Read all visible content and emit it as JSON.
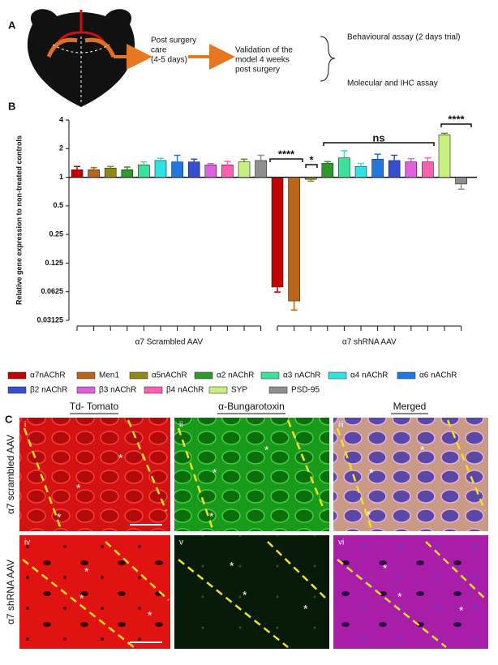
{
  "panel_labels": {
    "a": "A",
    "b": "B",
    "c": "C"
  },
  "panel_a": {
    "steps": [
      [
        "Post surgery",
        "care",
        " (4-5 days)"
      ],
      [
        "Validation of the",
        "model 4 weeks",
        "post surgery"
      ]
    ],
    "outcomes": [
      "Behavioural assay (2 days trial)",
      "Molecular and IHC assay"
    ]
  },
  "chart_data": {
    "type": "bar",
    "y_label": "Relative gene expression to non-treated controls",
    "categories": [
      "α7 Scrambled AAV",
      "α7 shRNA AAV"
    ],
    "yscale": "log2",
    "baseline": 1,
    "ylim": [
      0.03125,
      4
    ],
    "yticks": [
      0.03125,
      0.0625,
      0.125,
      0.25,
      0.5,
      1,
      2,
      4
    ],
    "series": [
      {
        "name": "α7nAChR",
        "color": "#c40000",
        "values": [
          1.2,
          0.07
        ],
        "errors": [
          0.1,
          0.008
        ]
      },
      {
        "name": "Men1",
        "color": "#b8661c",
        "values": [
          1.2,
          0.05
        ],
        "errors": [
          0.06,
          0.01
        ]
      },
      {
        "name": "α5nAChR",
        "color": "#8d8a18",
        "values": [
          1.25,
          0.95
        ],
        "errors": [
          0.05,
          0.04
        ]
      },
      {
        "name": "α2 nAChR",
        "color": "#2e9a2e",
        "values": [
          1.2,
          1.4
        ],
        "errors": [
          0.08,
          0.06
        ]
      },
      {
        "name": "α3 nAChR",
        "color": "#3fe09c",
        "values": [
          1.35,
          1.6
        ],
        "errors": [
          0.1,
          0.3
        ]
      },
      {
        "name": "α4 nAChR",
        "color": "#2fe3e3",
        "values": [
          1.5,
          1.3
        ],
        "errors": [
          0.08,
          0.1
        ]
      },
      {
        "name": "α6 nAChR",
        "color": "#1f78e0",
        "values": [
          1.45,
          1.55
        ],
        "errors": [
          0.25,
          0.2
        ]
      },
      {
        "name": "β2 nAChR",
        "color": "#3450d0",
        "values": [
          1.45,
          1.5
        ],
        "errors": [
          0.1,
          0.2
        ]
      },
      {
        "name": "β3 nAChR",
        "color": "#e060e0",
        "values": [
          1.35,
          1.45
        ],
        "errors": [
          0.04,
          0.12
        ]
      },
      {
        "name": "β4 nAChR",
        "color": "#ff5fb0",
        "values": [
          1.35,
          1.45
        ],
        "errors": [
          0.12,
          0.15
        ]
      },
      {
        "name": "SYP",
        "color": "#c8f080",
        "values": [
          1.45,
          2.8
        ],
        "errors": [
          0.1,
          0.1
        ]
      },
      {
        "name": "PSD-95",
        "color": "#8f8f8f",
        "values": [
          1.5,
          0.85
        ],
        "errors": [
          0.2,
          0.1
        ]
      }
    ],
    "annotations": [
      "****",
      "*",
      "ns",
      "****"
    ]
  },
  "panel_c": {
    "columns": [
      "Td- Tomato",
      "α-Bungarotoxin",
      "Merged"
    ],
    "rows": [
      "α7 scrambled AAV",
      "α7 shRNA AAV"
    ],
    "panel_numbers": [
      "i",
      "ii",
      "iii",
      "iv",
      "v",
      "vi"
    ],
    "marker": "*"
  }
}
